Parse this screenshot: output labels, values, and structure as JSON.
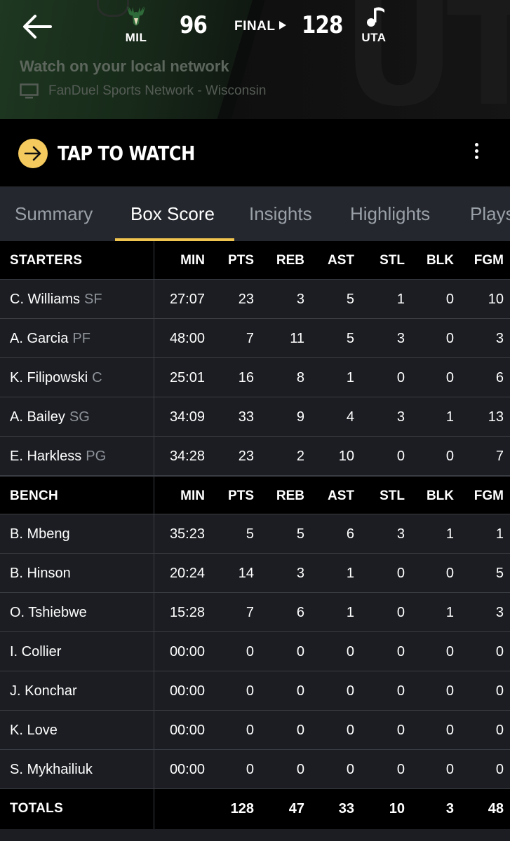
{
  "game": {
    "away": {
      "abbr": "MIL",
      "score": "96"
    },
    "home": {
      "abbr": "UTA",
      "score": "128"
    },
    "status": "FINAL",
    "watch_local": "Watch on your local network",
    "network": "FanDuel Sports Network - Wisconsin",
    "tap_to_watch": "TAP TO WATCH",
    "watermark": "UTA"
  },
  "tabs": [
    {
      "label": "Summary"
    },
    {
      "label": "Box Score"
    },
    {
      "label": "Insights"
    },
    {
      "label": "Highlights"
    },
    {
      "label": "Plays"
    }
  ],
  "active_tab": "Box Score",
  "columns": [
    "MIN",
    "PTS",
    "REB",
    "AST",
    "STL",
    "BLK",
    "FGM"
  ],
  "starters": {
    "label": "STARTERS",
    "players": [
      {
        "name": "C. Williams",
        "pos": "SF",
        "min": "27:07",
        "pts": "23",
        "reb": "3",
        "ast": "5",
        "stl": "1",
        "blk": "0",
        "fgm": "10"
      },
      {
        "name": "A. Garcia",
        "pos": "PF",
        "min": "48:00",
        "pts": "7",
        "reb": "11",
        "ast": "5",
        "stl": "3",
        "blk": "0",
        "fgm": "3"
      },
      {
        "name": "K. Filipowski",
        "pos": "C",
        "min": "25:01",
        "pts": "16",
        "reb": "8",
        "ast": "1",
        "stl": "0",
        "blk": "0",
        "fgm": "6"
      },
      {
        "name": "A. Bailey",
        "pos": "SG",
        "min": "34:09",
        "pts": "33",
        "reb": "9",
        "ast": "4",
        "stl": "3",
        "blk": "1",
        "fgm": "13"
      },
      {
        "name": "E. Harkless",
        "pos": "PG",
        "min": "34:28",
        "pts": "23",
        "reb": "2",
        "ast": "10",
        "stl": "0",
        "blk": "0",
        "fgm": "7"
      }
    ]
  },
  "bench": {
    "label": "BENCH",
    "players": [
      {
        "name": "B. Mbeng",
        "pos": "",
        "min": "35:23",
        "pts": "5",
        "reb": "5",
        "ast": "6",
        "stl": "3",
        "blk": "1",
        "fgm": "1"
      },
      {
        "name": "B. Hinson",
        "pos": "",
        "min": "20:24",
        "pts": "14",
        "reb": "3",
        "ast": "1",
        "stl": "0",
        "blk": "0",
        "fgm": "5"
      },
      {
        "name": "O. Tshiebwe",
        "pos": "",
        "min": "15:28",
        "pts": "7",
        "reb": "6",
        "ast": "1",
        "stl": "0",
        "blk": "1",
        "fgm": "3"
      },
      {
        "name": "I. Collier",
        "pos": "",
        "min": "00:00",
        "pts": "0",
        "reb": "0",
        "ast": "0",
        "stl": "0",
        "blk": "0",
        "fgm": "0"
      },
      {
        "name": "J. Konchar",
        "pos": "",
        "min": "00:00",
        "pts": "0",
        "reb": "0",
        "ast": "0",
        "stl": "0",
        "blk": "0",
        "fgm": "0"
      },
      {
        "name": "K. Love",
        "pos": "",
        "min": "00:00",
        "pts": "0",
        "reb": "0",
        "ast": "0",
        "stl": "0",
        "blk": "0",
        "fgm": "0"
      },
      {
        "name": "S. Mykhailiuk",
        "pos": "",
        "min": "00:00",
        "pts": "0",
        "reb": "0",
        "ast": "0",
        "stl": "0",
        "blk": "0",
        "fgm": "0"
      }
    ]
  },
  "totals": {
    "label": "TOTALS",
    "min": "",
    "pts": "128",
    "reb": "47",
    "ast": "33",
    "stl": "10",
    "blk": "3",
    "fgm": "48"
  },
  "colors": {
    "accent": "#f0c54f",
    "play_button": "#f4c95d",
    "background": "#1b1d22",
    "header_row": "#000000"
  }
}
